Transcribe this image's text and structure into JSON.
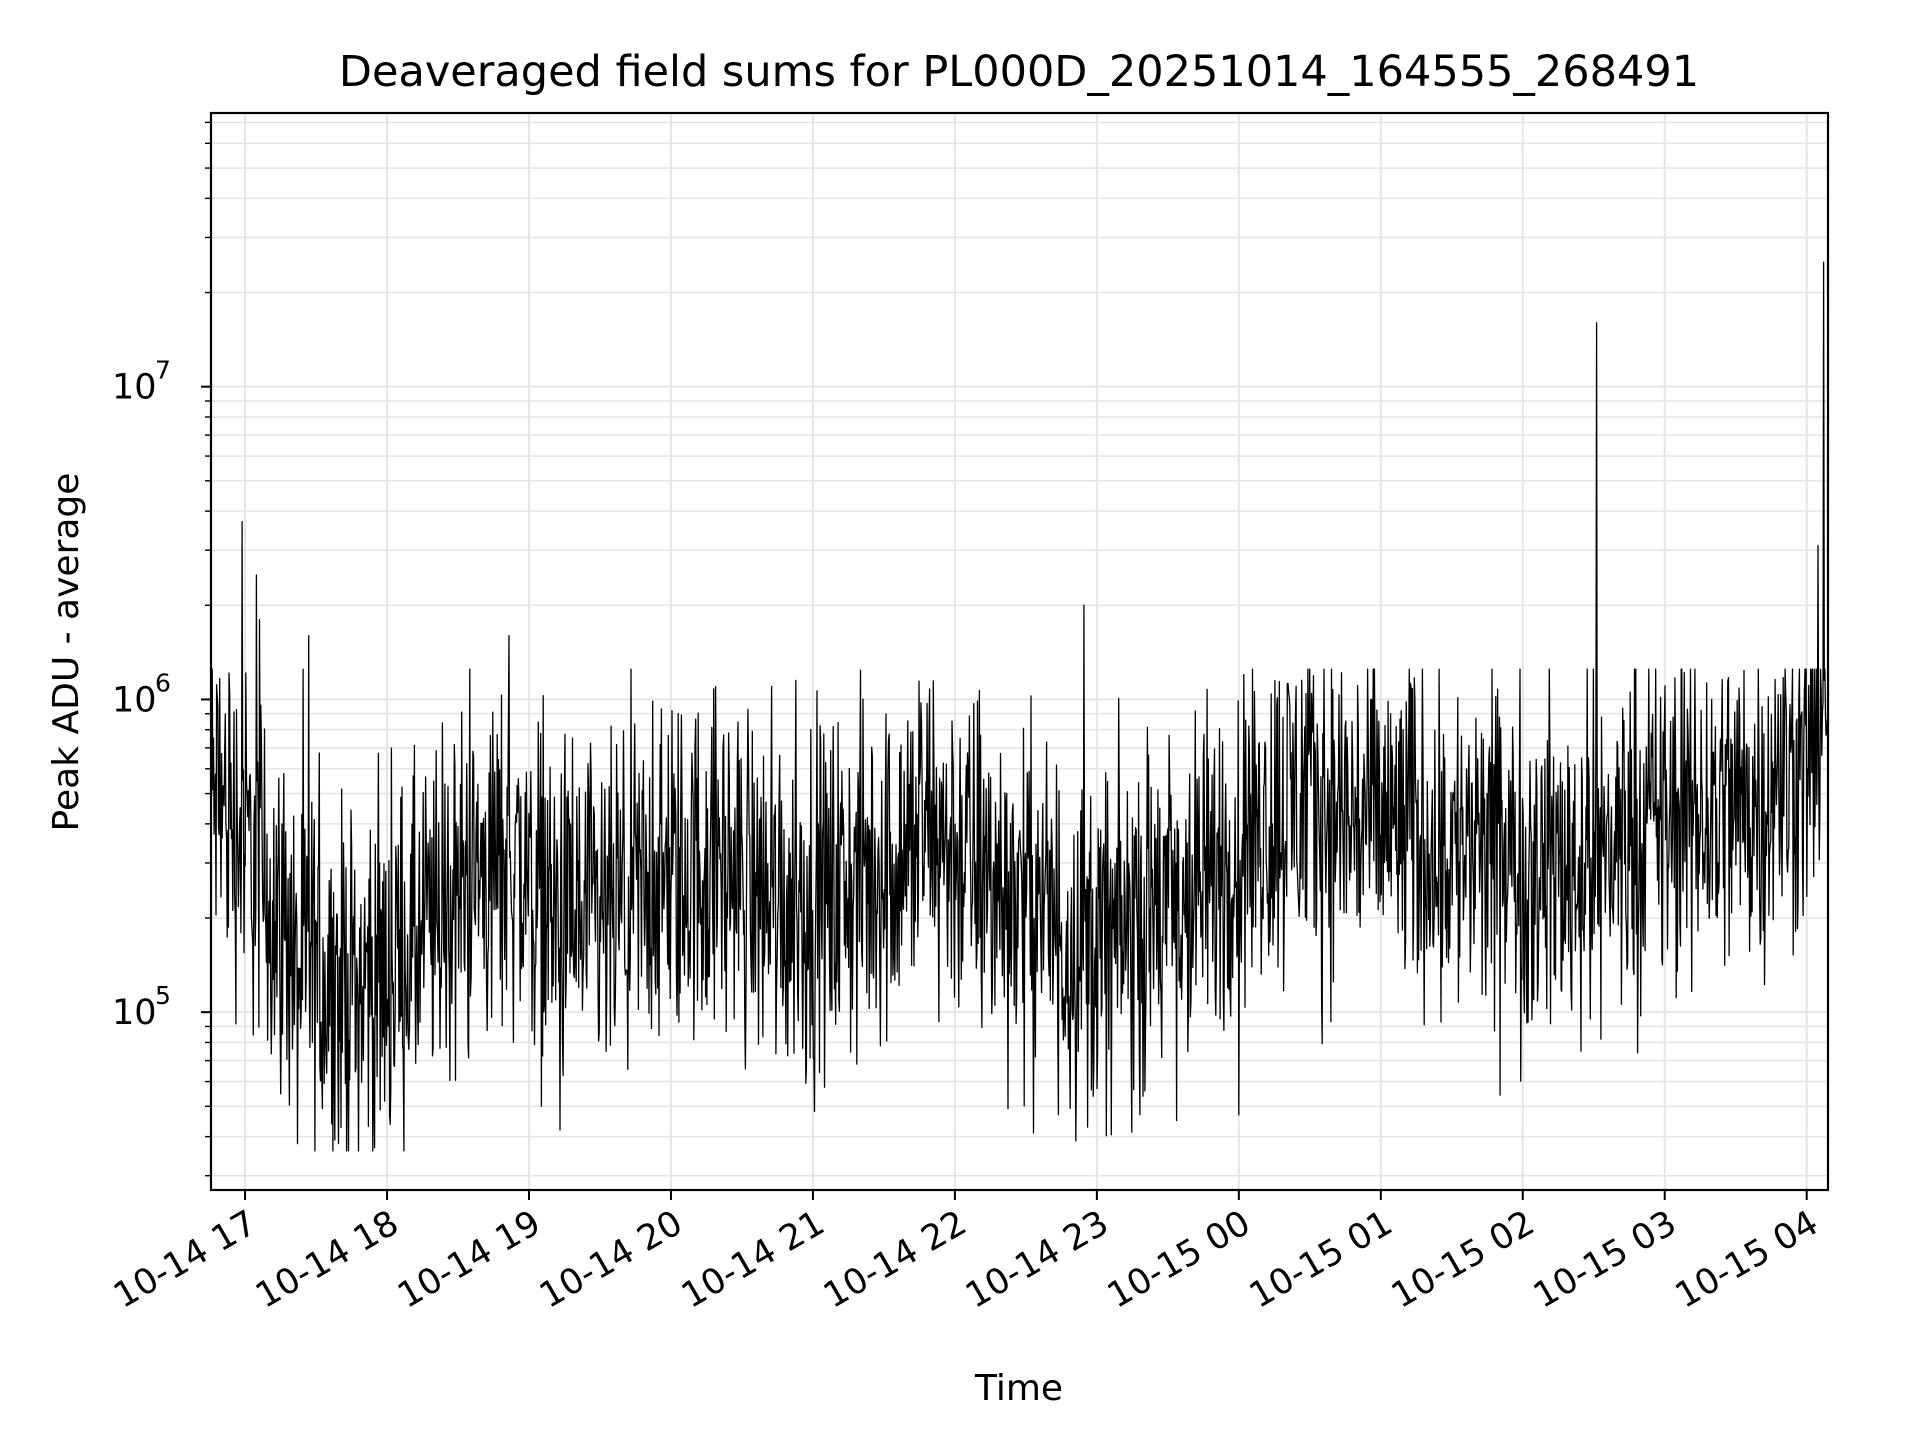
{
  "chart_data": {
    "type": "line",
    "title": "Deaveraged field sums for PL000D_20251014_164555_268491",
    "xlabel": "Time",
    "ylabel": "Peak ADU - average",
    "yscale": "log",
    "ylim": [
      27000,
      75000000
    ],
    "xlim_hours": [
      16.76,
      28.15
    ],
    "grid": true,
    "line_color": "#000000",
    "grid_color": "#e5e5e5",
    "x_ticks": [
      {
        "hour": 17,
        "label": "10-14 17"
      },
      {
        "hour": 18,
        "label": "10-14 18"
      },
      {
        "hour": 19,
        "label": "10-14 19"
      },
      {
        "hour": 20,
        "label": "10-14 20"
      },
      {
        "hour": 21,
        "label": "10-14 21"
      },
      {
        "hour": 22,
        "label": "10-14 22"
      },
      {
        "hour": 23,
        "label": "10-14 23"
      },
      {
        "hour": 24,
        "label": "10-15 00"
      },
      {
        "hour": 25,
        "label": "10-15 01"
      },
      {
        "hour": 26,
        "label": "10-15 02"
      },
      {
        "hour": 27,
        "label": "10-15 03"
      },
      {
        "hour": 28,
        "label": "10-15 04"
      }
    ],
    "y_ticks": [
      {
        "value": 100000,
        "base": "10",
        "exp": "5"
      },
      {
        "value": 1000000,
        "base": "10",
        "exp": "6"
      },
      {
        "value": 10000000,
        "base": "10",
        "exp": "7"
      }
    ],
    "series": [
      {
        "name": "deaveraged field sum",
        "trend_points": [
          [
            16.76,
            480000
          ],
          [
            16.9,
            420000
          ],
          [
            17.0,
            350000
          ],
          [
            17.15,
            250000
          ],
          [
            17.4,
            140000
          ],
          [
            17.7,
            120000
          ],
          [
            18.0,
            130000
          ],
          [
            18.3,
            180000
          ],
          [
            18.6,
            270000
          ],
          [
            18.9,
            300000
          ],
          [
            19.2,
            200000
          ],
          [
            19.5,
            180000
          ],
          [
            19.8,
            230000
          ],
          [
            20.0,
            260000
          ],
          [
            20.3,
            300000
          ],
          [
            20.6,
            250000
          ],
          [
            20.9,
            220000
          ],
          [
            21.2,
            240000
          ],
          [
            21.5,
            280000
          ],
          [
            21.8,
            380000
          ],
          [
            22.0,
            330000
          ],
          [
            22.3,
            250000
          ],
          [
            22.6,
            220000
          ],
          [
            22.9,
            160000
          ],
          [
            23.1,
            170000
          ],
          [
            23.4,
            200000
          ],
          [
            23.7,
            230000
          ],
          [
            24.0,
            350000
          ],
          [
            24.4,
            480000
          ],
          [
            24.8,
            420000
          ],
          [
            25.2,
            380000
          ],
          [
            25.6,
            320000
          ],
          [
            26.0,
            290000
          ],
          [
            26.4,
            300000
          ],
          [
            26.8,
            380000
          ],
          [
            27.2,
            420000
          ],
          [
            27.6,
            480000
          ],
          [
            27.9,
            550000
          ],
          [
            28.05,
            800000
          ],
          [
            28.15,
            650000
          ]
        ],
        "spikes": [
          {
            "hour": 16.98,
            "value": 3700000
          },
          {
            "hour": 17.08,
            "value": 2500000
          },
          {
            "hour": 17.1,
            "value": 1800000
          },
          {
            "hour": 17.45,
            "value": 1600000
          },
          {
            "hour": 18.86,
            "value": 1600000
          },
          {
            "hour": 20.88,
            "value": 1150000
          },
          {
            "hour": 22.91,
            "value": 2000000
          },
          {
            "hour": 26.52,
            "value": 16000000
          },
          {
            "hour": 28.12,
            "value": 25000000
          },
          {
            "hour": 28.08,
            "value": 3100000
          }
        ],
        "dips": [
          {
            "hour": 17.37,
            "value": 38000
          },
          {
            "hour": 17.66,
            "value": 38000
          },
          {
            "hour": 19.22,
            "value": 42000
          },
          {
            "hour": 22.73,
            "value": 47000
          },
          {
            "hour": 23.0,
            "value": 57000
          },
          {
            "hour": 23.56,
            "value": 45000
          },
          {
            "hour": 24.0,
            "value": 47000
          },
          {
            "hour": 26.55,
            "value": 82000
          }
        ]
      }
    ]
  }
}
